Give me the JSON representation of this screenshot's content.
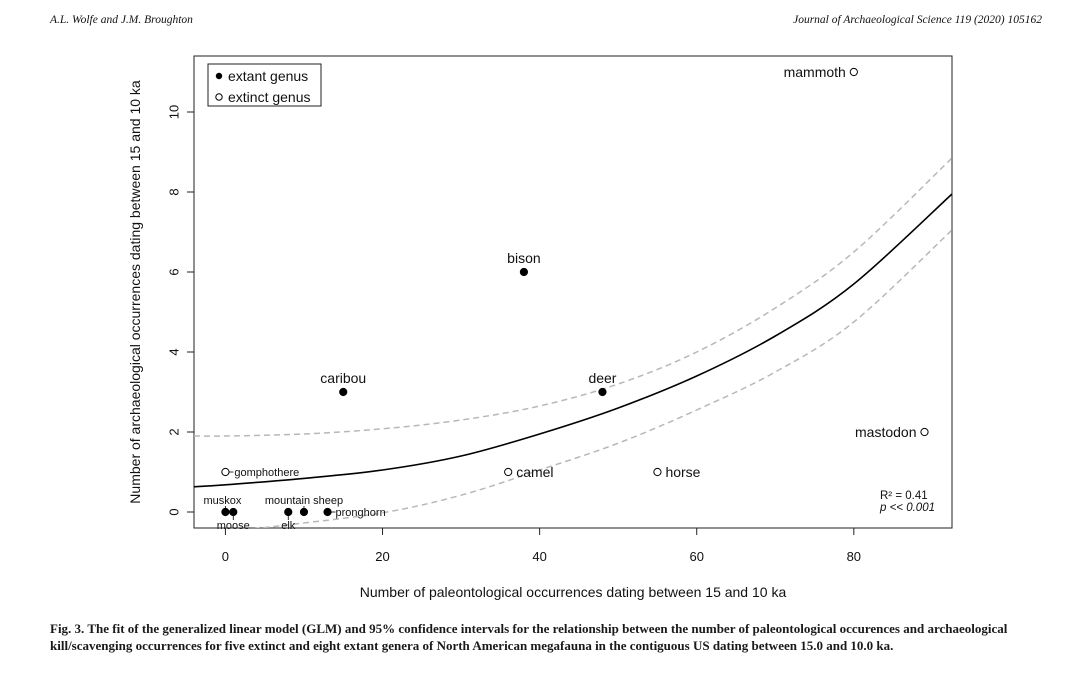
{
  "header": {
    "authors": "A.L. Wolfe and J.M. Broughton",
    "journal": "Journal of Archaeological Science 119 (2020) 105162"
  },
  "caption": {
    "label": "Fig. 3.",
    "text": "The fit of the generalized linear model (GLM) and 95% confidence intervals for the relationship between the number of paleontological occurences and archaeological kill/scavenging occurrences for five extinct and eight extant genera of North American megafauna in the contiguous US dating between 15.0 and 10.0 ka."
  },
  "chart_data": {
    "type": "scatter",
    "xlabel": "Number of paleontological occurrences dating between 15 and 10 ka",
    "ylabel": "Number of archaeological occurrences dating between 15 and 10 ka",
    "xlim": [
      -4,
      92.5
    ],
    "ylim": [
      -0.4,
      11.4
    ],
    "xticks": [
      0,
      20,
      40,
      60,
      80
    ],
    "yticks": [
      0,
      2,
      4,
      6,
      8,
      10
    ],
    "grid": false,
    "legend": {
      "placement": "top-left",
      "entries": [
        {
          "label": "extant genus",
          "marker": "filled"
        },
        {
          "label": "extinct genus",
          "marker": "open"
        }
      ]
    },
    "series": [
      {
        "name": "extant genus",
        "marker": "filled",
        "points": [
          {
            "label": "muskox",
            "x": 0,
            "y": 0
          },
          {
            "label": "moose",
            "x": 1,
            "y": 0
          },
          {
            "label": "elk",
            "x": 8,
            "y": 0
          },
          {
            "label": "mountain sheep",
            "x": 10,
            "y": 0
          },
          {
            "label": "pronghorn",
            "x": 13,
            "y": 0
          },
          {
            "label": "caribou",
            "x": 15,
            "y": 3
          },
          {
            "label": "bison",
            "x": 38,
            "y": 6
          },
          {
            "label": "deer",
            "x": 48,
            "y": 3
          }
        ]
      },
      {
        "name": "extinct genus",
        "marker": "open",
        "points": [
          {
            "label": "gomphothere",
            "x": 0,
            "y": 1
          },
          {
            "label": "camel",
            "x": 36,
            "y": 1
          },
          {
            "label": "horse",
            "x": 55,
            "y": 1
          },
          {
            "label": "mastodon",
            "x": 89,
            "y": 2
          },
          {
            "label": "mammoth",
            "x": 80,
            "y": 11
          }
        ]
      }
    ],
    "fit": {
      "model": "GLM",
      "curve": [
        [
          -4,
          0.63
        ],
        [
          0,
          0.68
        ],
        [
          10,
          0.84
        ],
        [
          20,
          1.05
        ],
        [
          30,
          1.4
        ],
        [
          40,
          1.95
        ],
        [
          50,
          2.6
        ],
        [
          60,
          3.4
        ],
        [
          70,
          4.4
        ],
        [
          80,
          5.7
        ],
        [
          92.5,
          7.95
        ]
      ],
      "ci_upper": [
        [
          -4,
          1.9
        ],
        [
          0,
          1.9
        ],
        [
          10,
          1.95
        ],
        [
          20,
          2.08
        ],
        [
          30,
          2.3
        ],
        [
          40,
          2.65
        ],
        [
          50,
          3.2
        ],
        [
          60,
          4.0
        ],
        [
          70,
          5.1
        ],
        [
          80,
          6.5
        ],
        [
          92.5,
          8.85
        ]
      ],
      "ci_lower": [
        [
          -4,
          -0.62
        ],
        [
          0,
          -0.5
        ],
        [
          8,
          -0.32
        ],
        [
          20,
          -0.02
        ],
        [
          30,
          0.42
        ],
        [
          40,
          1.05
        ],
        [
          50,
          1.72
        ],
        [
          60,
          2.55
        ],
        [
          70,
          3.5
        ],
        [
          80,
          4.75
        ],
        [
          92.5,
          7.05
        ]
      ]
    },
    "annotations": {
      "r2": "R² = 0.41",
      "p": "p << 0.001"
    }
  }
}
